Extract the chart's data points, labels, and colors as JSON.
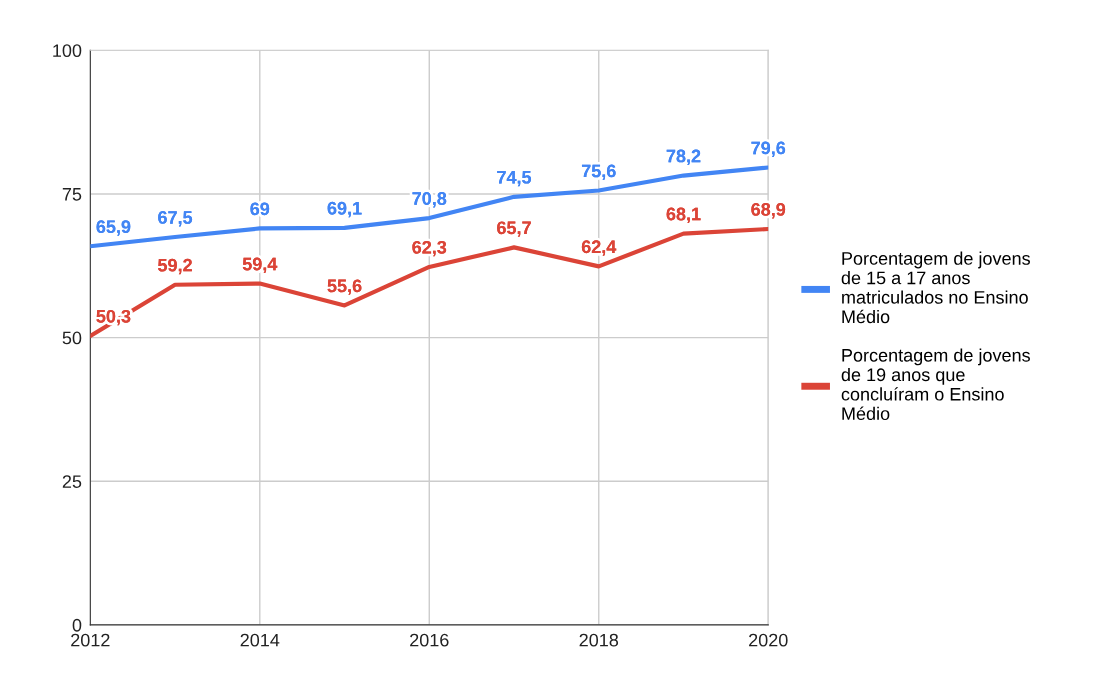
{
  "chart_data": {
    "type": "line",
    "x": [
      2012,
      2013,
      2014,
      2015,
      2016,
      2017,
      2018,
      2019,
      2020
    ],
    "series": [
      {
        "name": "Porcentagem de jovens de 15 a 17 anos matriculados no Ensino Médio",
        "color": "#4285f4",
        "values": [
          65.9,
          67.5,
          69,
          69.1,
          70.8,
          74.5,
          75.6,
          78.2,
          79.6
        ],
        "value_labels": [
          "65,9",
          "67,5",
          "69",
          "69,1",
          "70,8",
          "74,5",
          "75,6",
          "78,2",
          "79,6"
        ]
      },
      {
        "name": "Porcentagem de jovens de 19 anos que concluíram o Ensino Médio",
        "color": "#db4437",
        "values": [
          50.3,
          59.2,
          59.4,
          55.6,
          62.3,
          65.7,
          62.4,
          68.1,
          68.9
        ],
        "value_labels": [
          "50,3",
          "59,2",
          "59,4",
          "55,6",
          "62,3",
          "65,7",
          "62,4",
          "68,1",
          "68,9"
        ]
      }
    ],
    "xlim": [
      2012,
      2020
    ],
    "xticks": [
      2012,
      2014,
      2016,
      2018,
      2020
    ],
    "ylim": [
      0,
      100
    ],
    "yticks": [
      0,
      25,
      50,
      75,
      100
    ],
    "grid": true,
    "legend": "right",
    "marker": "none",
    "line_style": "solid"
  }
}
